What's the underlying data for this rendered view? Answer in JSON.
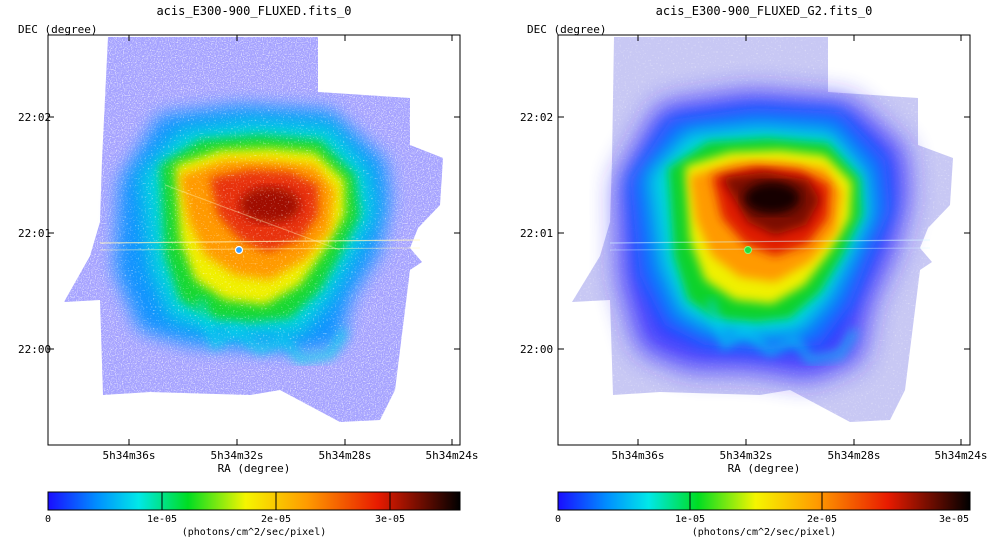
{
  "chart_data": [
    {
      "type": "heatmap",
      "title": "acis_E300-900_FLUXED.fits_0",
      "xlabel": "RA (degree)",
      "ylabel": "DEC (degree)",
      "x_ticks": [
        "5h34m36s",
        "5h34m32s",
        "5h34m28s",
        "5h34m24s"
      ],
      "y_ticks": [
        "22:02",
        "22:01",
        "22:00"
      ],
      "colorbar": {
        "label": "(photons/cm^2/sec/pixel)",
        "ticks": [
          "0",
          "1e-05",
          "2e-05",
          "3e-05"
        ],
        "range": [
          0,
          3.6e-05
        ],
        "colormap": "heat-rainbow"
      },
      "point_source": {
        "ra": "5h34m32s",
        "dec": "22:00:52"
      },
      "noise": "high"
    },
    {
      "type": "heatmap",
      "title": "acis_E300-900_FLUXED_G2.fits_0",
      "xlabel": "RA (degree)",
      "ylabel": "DEC (degree)",
      "x_ticks": [
        "5h34m36s",
        "5h34m32s",
        "5h34m28s",
        "5h34m24s"
      ],
      "y_ticks": [
        "22:02",
        "22:01",
        "22:00"
      ],
      "colorbar": {
        "label": "(photons/cm^2/sec/pixel)",
        "ticks": [
          "0",
          "1e-05",
          "2e-05",
          "3e-05"
        ],
        "range": [
          0,
          3.1e-05
        ],
        "colormap": "heat-rainbow"
      },
      "point_source": {
        "ra": "5h34m32s",
        "dec": "22:00:52"
      },
      "noise": "smoothed"
    }
  ],
  "colors": {
    "colormap_stops": [
      "#1a0dff",
      "#0090ff",
      "#00e8e8",
      "#00dd22",
      "#f5f500",
      "#ff9a00",
      "#e81b00",
      "#000000"
    ]
  }
}
